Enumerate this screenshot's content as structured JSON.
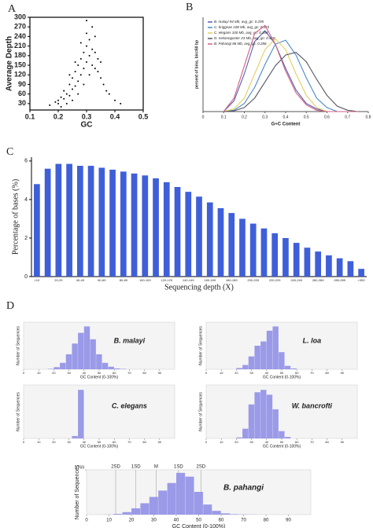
{
  "chart_data": [
    {
      "type": "scatter",
      "panel_label": "A",
      "x_label": "GC",
      "y_label": "Average Depth",
      "color": "#000000",
      "x": [
        0.17,
        0.19,
        0.2,
        0.21,
        0.22,
        0.22,
        0.23,
        0.24,
        0.24,
        0.25,
        0.25,
        0.26,
        0.26,
        0.27,
        0.27,
        0.28,
        0.28,
        0.29,
        0.29,
        0.3,
        0.3,
        0.3,
        0.31,
        0.31,
        0.32,
        0.32,
        0.32,
        0.33,
        0.33,
        0.34,
        0.34,
        0.35,
        0.35,
        0.36,
        0.37,
        0.38,
        0.4,
        0.42,
        0.21,
        0.23,
        0.25,
        0.27,
        0.29,
        0.31,
        0.33,
        0.3,
        0.28,
        0.26,
        0.24,
        0.2
      ],
      "y": [
        25,
        35,
        40,
        50,
        45,
        70,
        60,
        55,
        90,
        75,
        110,
        85,
        130,
        100,
        150,
        120,
        170,
        140,
        190,
        160,
        210,
        250,
        180,
        230,
        200,
        270,
        150,
        190,
        240,
        170,
        130,
        160,
        110,
        90,
        70,
        60,
        40,
        30,
        20,
        30,
        40,
        60,
        90,
        120,
        140,
        290,
        220,
        160,
        120,
        30
      ],
      "xlim": [
        0.1,
        0.5
      ],
      "xticks": [
        0.1,
        0.2,
        0.3,
        0.4,
        0.5
      ],
      "ylim": [
        10,
        300
      ],
      "yticks": [
        30,
        60,
        90,
        120,
        150,
        180,
        210,
        240,
        270,
        300
      ]
    },
    {
      "type": "line",
      "panel_label": "B",
      "x_label": "G+C Content",
      "y_label": "percent of bins, bin=60 bp",
      "x": [
        0.1,
        0.15,
        0.2,
        0.25,
        0.3,
        0.35,
        0.4,
        0.45,
        0.5,
        0.55,
        0.6,
        0.65,
        0.7,
        0.75
      ],
      "series": [
        {
          "name": "B. malayi 94 Mb, avg_gc: 0.295",
          "color": "#5a5ab4",
          "values": [
            0,
            0.8,
            2.8,
            5.2,
            6.0,
            5.0,
            3.2,
            1.6,
            0.6,
            0.2,
            0,
            0,
            0,
            0
          ]
        },
        {
          "name": "C. briggsae 108 Mb, avg_gc: 0.373",
          "color": "#4a8ac8",
          "values": [
            0,
            0.1,
            0.6,
            1.8,
            3.5,
            5.0,
            5.3,
            4.2,
            2.5,
            1.0,
            0.3,
            0,
            0,
            0
          ]
        },
        {
          "name": "C. elegans 100 Mb, avg_gc: 0.354",
          "color": "#e0cf60",
          "values": [
            0,
            0.2,
            1.0,
            2.8,
            4.6,
            5.4,
            4.6,
            2.8,
            1.2,
            0.3,
            0,
            0,
            0,
            0
          ]
        },
        {
          "name": "D. melanogaster 23 Mb, avg_gc: 0.418",
          "color": "#555566",
          "values": [
            0,
            0.05,
            0.3,
            1.0,
            2.2,
            3.4,
            4.2,
            4.4,
            3.7,
            2.4,
            1.2,
            0.4,
            0.1,
            0
          ]
        },
        {
          "name": "B. Pahangi 86 Mb, avg_gc: 0.286",
          "color": "#d06080",
          "values": [
            0,
            1.0,
            3.4,
            5.8,
            6.4,
            5.0,
            3.0,
            1.4,
            0.5,
            0.1,
            0,
            0,
            0,
            0
          ]
        }
      ],
      "xlim": [
        0,
        0.8
      ],
      "xticks": [
        0,
        0.1,
        0.2,
        0.3,
        0.4,
        0.5,
        0.6,
        0.7,
        0.8
      ],
      "ylim": [
        0,
        7
      ],
      "legend": "upper left"
    },
    {
      "type": "bar",
      "panel_label": "C",
      "x_label": "Sequencing depth (X)",
      "y_label": "Percentage of bases (%)",
      "color": "#3f5fd9",
      "categories": [
        "<10",
        null,
        "20-29",
        null,
        "40-49",
        null,
        "60-69",
        null,
        "80-89",
        null,
        "100-109",
        null,
        "120-129",
        null,
        "140-149",
        null,
        "160-169",
        null,
        "180-189",
        null,
        "200-209",
        null,
        "220-229",
        null,
        "240-249",
        null,
        "260-269",
        null,
        "280-289",
        null,
        ">300"
      ],
      "values": [
        4.8,
        5.6,
        5.85,
        5.85,
        5.75,
        5.75,
        5.65,
        5.55,
        5.45,
        5.35,
        5.25,
        5.1,
        4.9,
        4.65,
        4.4,
        4.15,
        3.85,
        3.55,
        3.3,
        3.0,
        2.75,
        2.5,
        2.25,
        2.0,
        1.75,
        1.5,
        1.3,
        1.1,
        0.95,
        0.8,
        0.4
      ],
      "ylim": [
        0,
        6.2
      ],
      "yticks": [
        0,
        2,
        4,
        6
      ]
    },
    {
      "type": "histogram",
      "panel_label": "D",
      "name": "B. malayi",
      "x_label": "GC Content (0-100%)",
      "y_label": "Number of Sequences",
      "color": "#9a9ae8",
      "bins": [
        0,
        4,
        8,
        12,
        16,
        20,
        24,
        28,
        32,
        36,
        40,
        44,
        48,
        52,
        56,
        60,
        64,
        68,
        72,
        76,
        80,
        84,
        88,
        92,
        96,
        100
      ],
      "values": [
        0,
        0,
        0,
        0,
        1,
        5,
        15,
        35,
        60,
        85,
        100,
        70,
        35,
        15,
        6,
        2,
        1,
        0,
        0,
        0,
        0,
        0,
        0,
        0,
        0
      ],
      "xlim": [
        0,
        100
      ],
      "xticks": [
        0,
        10,
        20,
        30,
        40,
        50,
        60,
        70,
        80,
        90
      ],
      "ylim": [
        0,
        110
      ]
    },
    {
      "type": "histogram",
      "name": "L. loa",
      "x_label": "GC Content (0-100%)",
      "y_label": "Number of Sequences",
      "color": "#9a9ae8",
      "bins": [
        0,
        4,
        8,
        12,
        16,
        20,
        24,
        28,
        32,
        36,
        40,
        44,
        48,
        52,
        56,
        60,
        64,
        68,
        72,
        76,
        80,
        84,
        88,
        92,
        96,
        100
      ],
      "values": [
        0,
        0,
        0,
        0,
        0,
        3,
        10,
        30,
        55,
        65,
        90,
        100,
        40,
        8,
        2,
        0,
        0,
        0,
        0,
        0,
        0,
        0,
        0,
        0,
        0
      ],
      "xlim": [
        0,
        100
      ],
      "xticks": [
        0,
        10,
        20,
        30,
        40,
        50,
        60,
        70,
        80,
        90
      ],
      "ylim": [
        0,
        110
      ]
    },
    {
      "type": "histogram",
      "name": "C. elegans",
      "x_label": "GC Content (0-100%)",
      "y_label": "Number of Sequences",
      "color": "#9a9ae8",
      "bins": [
        0,
        4,
        8,
        12,
        16,
        20,
        24,
        28,
        32,
        36,
        40,
        44,
        48,
        52,
        56,
        60,
        64,
        68,
        72,
        76,
        80,
        84,
        88,
        92,
        96,
        100
      ],
      "values": [
        0,
        0,
        0,
        0,
        0,
        0,
        0,
        0,
        5,
        100,
        0,
        0,
        0,
        0,
        0,
        0,
        0,
        0,
        0,
        0,
        0,
        0,
        0,
        0,
        0
      ],
      "xlim": [
        0,
        100
      ],
      "xticks": [
        0,
        10,
        20,
        30,
        40,
        50,
        60,
        70,
        80,
        90
      ],
      "ylim": [
        0,
        110
      ]
    },
    {
      "type": "histogram",
      "name": "W. bancrofti",
      "x_label": "GC Content (0-100%)",
      "y_label": "Number of Sequences",
      "color": "#9a9ae8",
      "bins": [
        0,
        4,
        8,
        12,
        16,
        20,
        24,
        28,
        32,
        36,
        40,
        44,
        48,
        52,
        56,
        60,
        64,
        68,
        72,
        76,
        80,
        84,
        88,
        92,
        96,
        100
      ],
      "values": [
        0,
        0,
        0,
        0,
        0,
        2,
        20,
        70,
        95,
        100,
        90,
        60,
        15,
        3,
        0,
        0,
        0,
        0,
        0,
        0,
        0,
        0,
        0,
        0,
        0
      ],
      "xlim": [
        0,
        100
      ],
      "xticks": [
        0,
        10,
        20,
        30,
        40,
        50,
        60,
        70,
        80,
        90
      ],
      "ylim": [
        0,
        110
      ]
    },
    {
      "type": "histogram",
      "name": "B. pahangi",
      "x_label": "GC Content (0-100%)",
      "y_label": "Number of Sequences",
      "color": "#9a9ae8",
      "bins": [
        0,
        4,
        8,
        12,
        16,
        20,
        24,
        28,
        32,
        36,
        40,
        44,
        48,
        52,
        56,
        60,
        64,
        68,
        72,
        76,
        80,
        84,
        88,
        92,
        96,
        100
      ],
      "values": [
        0,
        0,
        5,
        30,
        100,
        250,
        450,
        700,
        950,
        1250,
        1650,
        1500,
        900,
        400,
        150,
        50,
        20,
        10,
        5,
        0,
        0,
        0,
        0,
        0,
        0
      ],
      "xlim": [
        0,
        100
      ],
      "xticks": [
        0,
        10,
        20,
        30,
        40,
        50,
        60,
        70,
        80,
        90
      ],
      "ylim": [
        0,
        1769
      ],
      "yticks": [
        {
          "value": 1769,
          "label": "1,769"
        }
      ],
      "annotations": [
        {
          "value": 13,
          "label": "2SD"
        },
        {
          "value": 22,
          "label": "1SD"
        },
        {
          "value": 31,
          "label": "M"
        },
        {
          "value": 41,
          "label": "1SD"
        },
        {
          "value": 51,
          "label": "2SD"
        }
      ]
    }
  ]
}
